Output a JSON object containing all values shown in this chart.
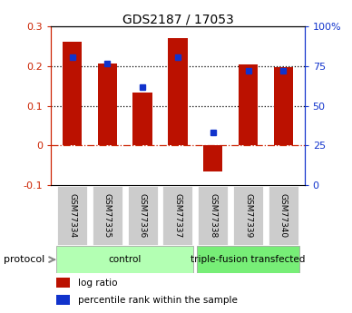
{
  "title": "GDS2187 / 17053",
  "samples": [
    "GSM77334",
    "GSM77335",
    "GSM77336",
    "GSM77337",
    "GSM77338",
    "GSM77339",
    "GSM77340"
  ],
  "log_ratio": [
    0.262,
    0.208,
    0.133,
    0.27,
    -0.065,
    0.205,
    0.197
  ],
  "percentile_rank": [
    0.805,
    0.765,
    0.62,
    0.808,
    0.335,
    0.72,
    0.72
  ],
  "groups": [
    {
      "label": "control",
      "indices": [
        0,
        1,
        2,
        3
      ],
      "color": "#b3ffb3"
    },
    {
      "label": "triple-fusion transfected",
      "indices": [
        4,
        5,
        6
      ],
      "color": "#77ee77"
    }
  ],
  "bar_color": "#bb1100",
  "dot_color": "#1133cc",
  "ylim_left": [
    -0.1,
    0.3
  ],
  "ylim_right": [
    0,
    100
  ],
  "right_ticks": [
    0,
    25,
    50,
    75,
    100
  ],
  "left_ticks": [
    -0.1,
    0.0,
    0.1,
    0.2,
    0.3
  ],
  "hlines_dotted": [
    0.1,
    0.2
  ],
  "hline_dashdot_color": "#cc2200",
  "bar_width": 0.55,
  "legend_items": [
    {
      "label": "log ratio",
      "color": "#bb1100"
    },
    {
      "label": "percentile rank within the sample",
      "color": "#1133cc"
    }
  ],
  "protocol_label": "protocol",
  "left_axis_color": "#cc2200",
  "right_axis_color": "#1133cc",
  "box_color": "#cccccc",
  "box_edge_color": "#ffffff"
}
